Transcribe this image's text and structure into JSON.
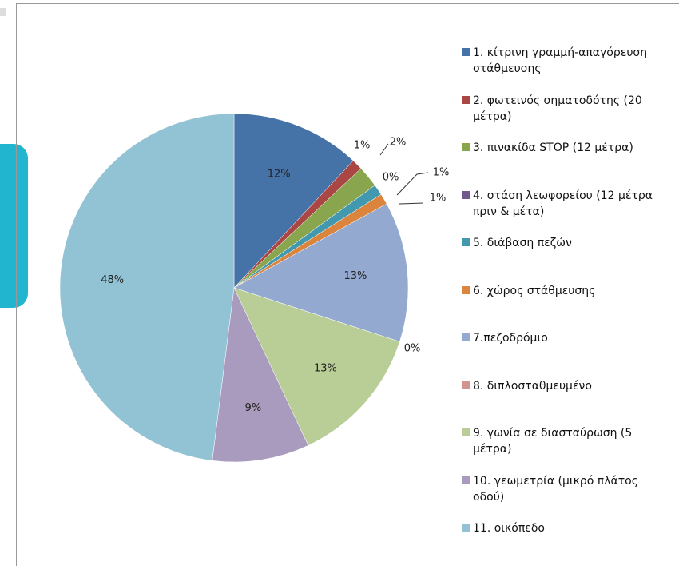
{
  "chart_data": {
    "type": "pie",
    "categories": [
      "1. κίτρινη γραμμή-απαγόρευση στάθμευσης",
      "2. φωτεινός σηματοδότης (20 μέτρα)",
      "3. πινακίδα STOP (12 μέτρα)",
      "4. στάση λεωφορείου (12 μέτρα πριν & μέτα)",
      "5. διάβαση πεζών",
      "6. χώρος στάθμευσης",
      "7.πεζοδρόμιο",
      "8. διπλοσταθμευμένο",
      "9. γωνία σε διασταύρωση (5 μέτρα)",
      "10. γεωμετρία (μικρό πλάτος οδού)",
      "11. οικόπεδο"
    ],
    "values": [
      12,
      1,
      2,
      0,
      1,
      1,
      13,
      0,
      13,
      9,
      48
    ],
    "value_labels": [
      "12%",
      "1%",
      "2%",
      "0%",
      "1%",
      "1%",
      "13%",
      "0%",
      "13%",
      "9%",
      "48%"
    ],
    "colors": [
      "#4572a7",
      "#aa4643",
      "#89a54e",
      "#71588f",
      "#4198af",
      "#db843d",
      "#93a9cf",
      "#d19392",
      "#b9cd96",
      "#a99bbd",
      "#92c3d4"
    ],
    "legend": "right"
  }
}
